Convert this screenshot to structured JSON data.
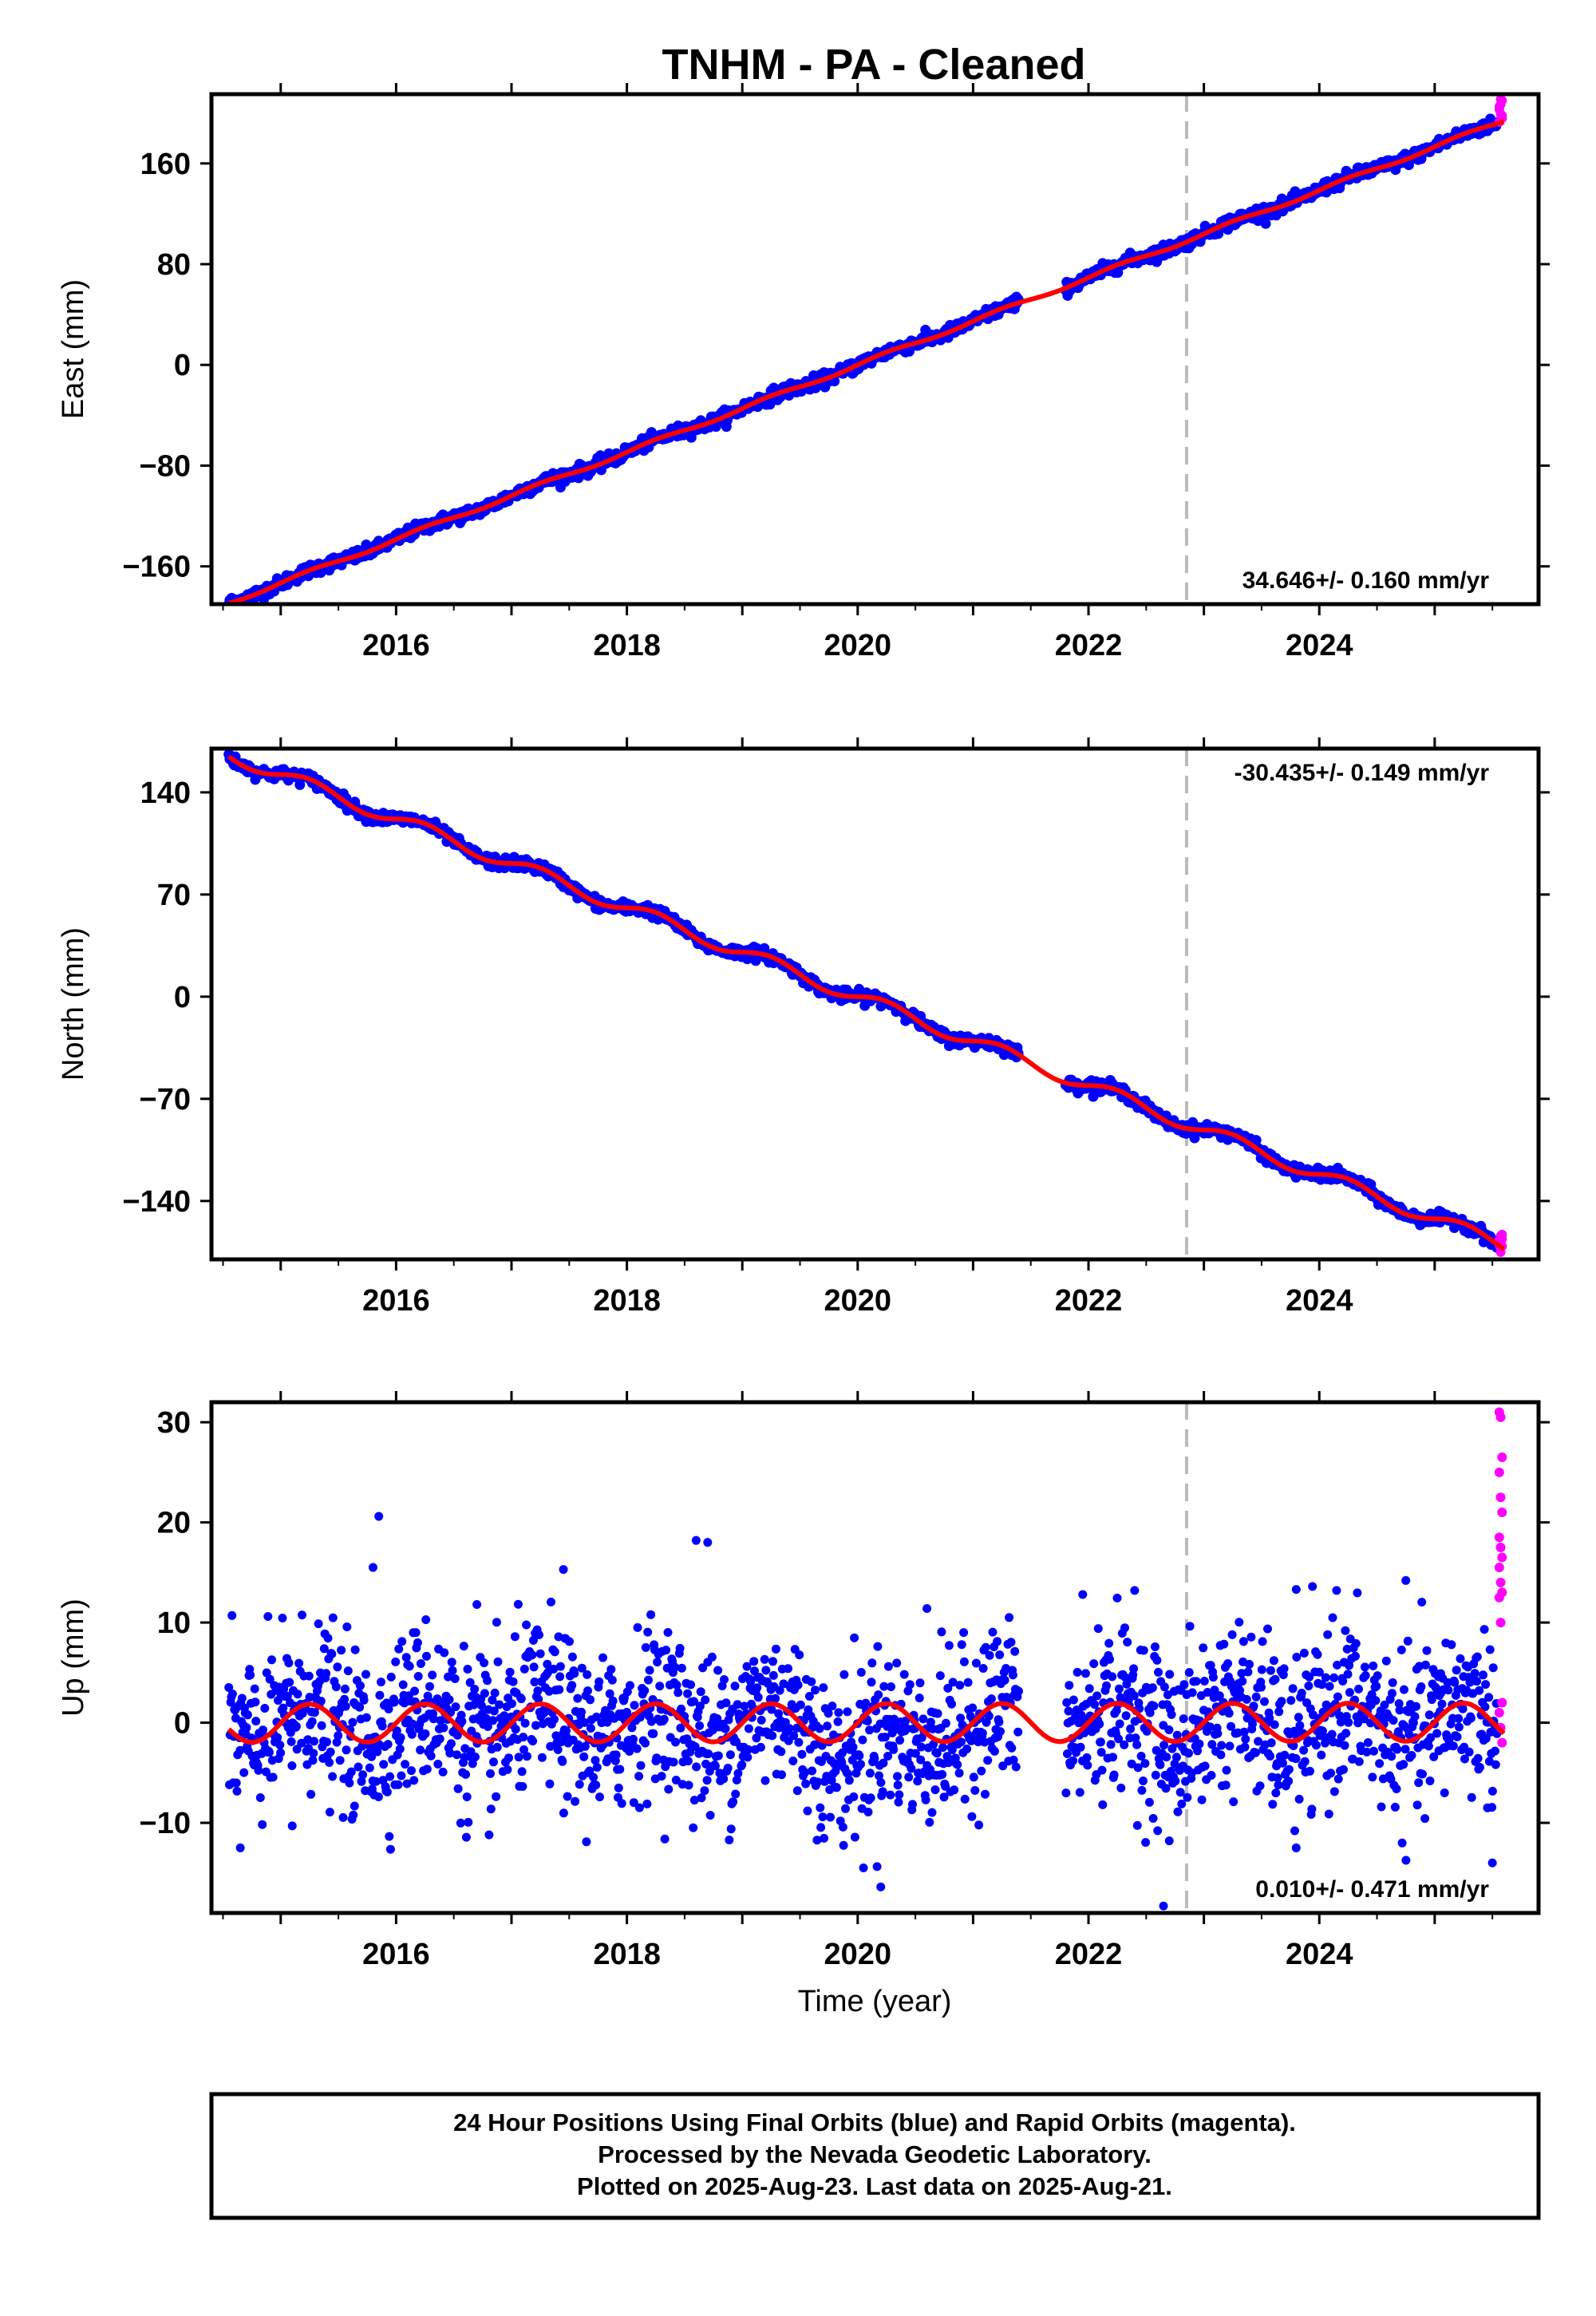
{
  "chart_data": {
    "type": "scatter",
    "title": "TNHM  - PA - Cleaned",
    "xlabel": "Time (year)",
    "xlim": [
      2014.4,
      2025.9
    ],
    "x_ticks": [
      2016,
      2018,
      2020,
      2022,
      2024
    ],
    "x_tick_labels": [
      "2016",
      "2018",
      "2020",
      "2022",
      "2024"
    ],
    "equipment_change_year": 2022.85,
    "data_gap": [
      2021.4,
      2021.8
    ],
    "grid": false,
    "colors": {
      "final": "#0000ff",
      "rapid": "#ff00ff",
      "model": "#ff0000",
      "marker_line": "#bbbbbb"
    },
    "panels": [
      {
        "component": "east",
        "ylabel": "East (mm)",
        "ylim": [
          -190,
          215
        ],
        "y_ticks": [
          -160,
          -80,
          0,
          80,
          160
        ],
        "y_tick_labels": [
          "−160",
          "−80",
          "0",
          "80",
          "160"
        ],
        "rate_text": "34.646+/- 0.160 mm/yr",
        "rate_position": "bottom-right",
        "trend": {
          "t0": 2020,
          "value_at_t0": 0.0,
          "rate_mm_per_yr": 34.646
        },
        "seasonal_amplitude_mm": 1.5,
        "scatter_noise_mm": 2.5,
        "rapid_values": [
          205,
          199,
          210,
          193,
          207,
          196,
          203,
          211,
          198
        ]
      },
      {
        "component": "north",
        "ylabel": "North (mm)",
        "ylim": [
          -180,
          170
        ],
        "y_ticks": [
          -140,
          -70,
          0,
          70,
          140
        ],
        "y_tick_labels": [
          "−140",
          "−70",
          "0",
          "70",
          "140"
        ],
        "rate_text": "-30.435+/- 0.149 mm/yr",
        "rate_position": "top-right",
        "trend": {
          "t0": 2020,
          "value_at_t0": 0.0,
          "rate_mm_per_yr": -30.435
        },
        "seasonal_amplitude_mm": 4.5,
        "scatter_noise_mm": 2.0,
        "rapid_values": [
          -167,
          -172,
          -163,
          -170,
          -175,
          -166,
          -169,
          -164,
          -171
        ]
      },
      {
        "component": "up",
        "ylabel": "Up (mm)",
        "ylim": [
          -19,
          32
        ],
        "y_ticks": [
          -10,
          0,
          10,
          20,
          30
        ],
        "y_tick_labels": [
          "−10",
          "0",
          "10",
          "20",
          "30"
        ],
        "rate_text": "0.010+/- 0.471 mm/yr",
        "rate_position": "bottom-right",
        "trend": {
          "t0": 2020,
          "value_at_t0": 0.0,
          "rate_mm_per_yr": 0.01
        },
        "seasonal_amplitude_mm": 1.9,
        "scatter_noise_mm": 4.0,
        "rapid_values": [
          31,
          30.5,
          26.5,
          25,
          22.5,
          21,
          18.5,
          17.5,
          16.5,
          15.5,
          14,
          13,
          12.5,
          10,
          2,
          1,
          -0.5,
          -2
        ],
        "outliers": [
          {
            "x": 2015.85,
            "y": 20.6
          },
          {
            "x": 2015.8,
            "y": 15.5
          },
          {
            "x": 2017.45,
            "y": 15.3
          },
          {
            "x": 2018.6,
            "y": 18.2
          },
          {
            "x": 2018.7,
            "y": 18.0
          },
          {
            "x": 2014.65,
            "y": -12.5
          },
          {
            "x": 2020.2,
            "y": -16.4
          },
          {
            "x": 2020.05,
            "y": -14.5
          },
          {
            "x": 2022.65,
            "y": -18.3
          },
          {
            "x": 2022.7,
            "y": -11.8
          },
          {
            "x": 2023.8,
            "y": -12.5
          },
          {
            "x": 2025.5,
            "y": -14.0
          },
          {
            "x": 2022.4,
            "y": 13.2
          },
          {
            "x": 2024.15,
            "y": 13.2
          },
          {
            "x": 2023.8,
            "y": 13.3
          },
          {
            "x": 2024.75,
            "y": 14.2
          },
          {
            "x": 2016.7,
            "y": 11.8
          },
          {
            "x": 2020.6,
            "y": 11.4
          },
          {
            "x": 2021.95,
            "y": 12.8
          },
          {
            "x": 2015.1,
            "y": -10.3
          }
        ]
      }
    ]
  },
  "footer": {
    "line1": "24 Hour Positions Using Final Orbits (blue) and Rapid Orbits (magenta).",
    "line2": "Processed by the Nevada Geodetic Laboratory.",
    "line3": "Plotted on 2025-Aug-23. Last data on 2025-Aug-21."
  }
}
